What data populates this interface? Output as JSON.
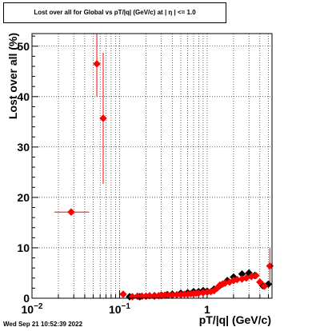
{
  "chart_data": {
    "type": "scatter",
    "title": "Lost over all for Global vs pT/|q| (GeV/c) at |  η  | <= 1.0",
    "xlabel": "pT/|q| (GeV/c)",
    "ylabel": "Lost over all (%)",
    "x_scale": "log",
    "xlim": [
      0.01,
      5.5
    ],
    "ylim": [
      0,
      52.5
    ],
    "y_ticks": [
      "0",
      "10",
      "20",
      "30",
      "40",
      "50"
    ],
    "x_ticks": [
      {
        "base": "10",
        "exp": "−2",
        "value": 0.01
      },
      {
        "base": "10",
        "exp": "−1",
        "value": 0.1
      },
      {
        "base": "1",
        "exp": "",
        "value": 1
      }
    ],
    "grid": true,
    "series": [
      {
        "color": "#000000",
        "marker": "diamond",
        "points": [
          {
            "x": 0.13,
            "y": 0.3
          },
          {
            "x": 0.17,
            "y": 0.3
          },
          {
            "x": 0.2,
            "y": 0.4
          },
          {
            "x": 0.25,
            "y": 0.5
          },
          {
            "x": 0.3,
            "y": 0.6
          },
          {
            "x": 0.35,
            "y": 0.7
          },
          {
            "x": 0.4,
            "y": 0.8
          },
          {
            "x": 0.5,
            "y": 1.0
          },
          {
            "x": 0.6,
            "y": 1.1
          },
          {
            "x": 0.7,
            "y": 1.3
          },
          {
            "x": 0.8,
            "y": 1.3
          },
          {
            "x": 0.9,
            "y": 1.5
          },
          {
            "x": 1.0,
            "y": 1.4
          },
          {
            "x": 1.2,
            "y": 1.8
          },
          {
            "x": 1.4,
            "y": 2.5
          },
          {
            "x": 1.7,
            "y": 3.5
          },
          {
            "x": 2.0,
            "y": 4.2
          },
          {
            "x": 2.5,
            "y": 4.8
          },
          {
            "x": 3.0,
            "y": 5.0
          },
          {
            "x": 3.5,
            "y": 4.5
          },
          {
            "x": 4.3,
            "y": 2.5
          },
          {
            "x": 5.0,
            "y": 2.8
          }
        ]
      },
      {
        "color": "#ff0000",
        "marker": "diamond",
        "points": [
          {
            "x": 0.028,
            "y": 17.1,
            "xerr": [
              0.018,
              0.045
            ],
            "yerr": 0.0
          },
          {
            "x": 0.055,
            "y": 46.5,
            "xerr": [
              0.05,
              0.06
            ],
            "yerr": 6.5
          },
          {
            "x": 0.065,
            "y": 35.7,
            "xerr": [
              0.06,
              0.07
            ],
            "yerr": 13.0
          },
          {
            "x": 0.11,
            "y": 0.8,
            "yerr": 0.4
          },
          {
            "x": 0.14,
            "y": 0.3
          },
          {
            "x": 0.16,
            "y": 0.4
          },
          {
            "x": 0.18,
            "y": 0.4
          },
          {
            "x": 0.2,
            "y": 0.4
          },
          {
            "x": 0.22,
            "y": 0.5
          },
          {
            "x": 0.25,
            "y": 0.4
          },
          {
            "x": 0.28,
            "y": 0.5
          },
          {
            "x": 0.3,
            "y": 0.5
          },
          {
            "x": 0.33,
            "y": 0.6
          },
          {
            "x": 0.36,
            "y": 0.6
          },
          {
            "x": 0.4,
            "y": 0.6
          },
          {
            "x": 0.45,
            "y": 0.7
          },
          {
            "x": 0.5,
            "y": 0.7
          },
          {
            "x": 0.55,
            "y": 0.8
          },
          {
            "x": 0.6,
            "y": 0.8
          },
          {
            "x": 0.65,
            "y": 0.9
          },
          {
            "x": 0.7,
            "y": 0.9
          },
          {
            "x": 0.75,
            "y": 1.0
          },
          {
            "x": 0.8,
            "y": 1.0
          },
          {
            "x": 0.9,
            "y": 1.1
          },
          {
            "x": 1.0,
            "y": 1.2
          },
          {
            "x": 1.1,
            "y": 1.3
          },
          {
            "x": 1.2,
            "y": 1.5
          },
          {
            "x": 1.3,
            "y": 2.0
          },
          {
            "x": 1.4,
            "y": 2.6
          },
          {
            "x": 1.5,
            "y": 2.8
          },
          {
            "x": 1.6,
            "y": 3.0
          },
          {
            "x": 1.8,
            "y": 3.2
          },
          {
            "x": 2.0,
            "y": 3.5
          },
          {
            "x": 2.2,
            "y": 3.7
          },
          {
            "x": 2.5,
            "y": 3.8
          },
          {
            "x": 2.8,
            "y": 4.0
          },
          {
            "x": 3.2,
            "y": 4.3
          },
          {
            "x": 3.6,
            "y": 4.5
          },
          {
            "x": 4.0,
            "y": 3.2
          },
          {
            "x": 4.5,
            "y": 2.4
          },
          {
            "x": 5.2,
            "y": 6.4,
            "yerr": 3.5
          }
        ]
      }
    ]
  },
  "footer": {
    "timestamp": "Wed Sep 21 10:52:39 2022"
  }
}
